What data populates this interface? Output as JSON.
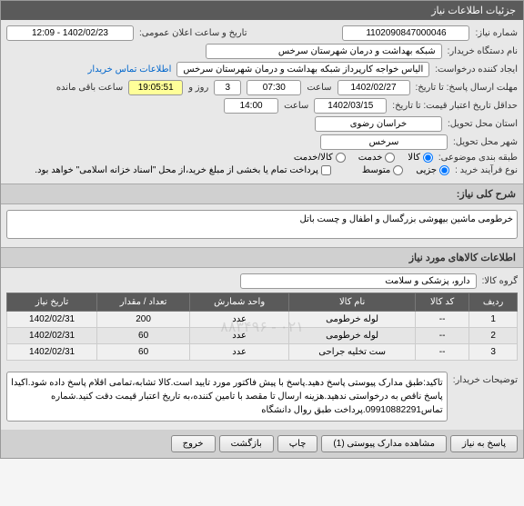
{
  "header": {
    "left": "جزئیات اطلاعات نیاز",
    "right": "×"
  },
  "fields": {
    "need_number_label": "شماره نیاز:",
    "need_number": "1102090847000046",
    "announce_label": "تاریخ و ساعت اعلان عمومی:",
    "announce_value": "1402/02/23 - 12:09",
    "buyer_label": "نام دستگاه خریدار:",
    "buyer_value": "شبکه بهداشت و درمان شهرستان سرخس",
    "creator_label": "ایجاد کننده درخواست:",
    "creator_value": "الیاس خواجه کارپرداز شبکه بهداشت و درمان شهرستان سرخس",
    "contact_link": "اطلاعات تماس خریدار",
    "deadline_label": "مهلت ارسال پاسخ: تا تاریخ:",
    "deadline_date": "1402/02/27",
    "time_label": "ساعت",
    "deadline_time": "07:30",
    "days_label": "روز و",
    "days_value": "3",
    "remaining_label": "ساعت باقی مانده",
    "remaining_time": "19:05:51",
    "validity_label": "حداقل تاریخ اعتبار قیمت: تا تاریخ:",
    "validity_date": "1402/03/15",
    "validity_time": "14:00",
    "province_label": "استان محل تحویل:",
    "province_value": "خراسان رضوی",
    "city_label": "شهر محل تحویل:",
    "city_value": "سرخس",
    "category_label": "طبقه بندی موضوعی:",
    "cat_goods": "کالا",
    "cat_service": "خدمت",
    "cat_both": "کالا/خدمت",
    "process_label": "نوع فرآیند خرید :",
    "proc_minor": "جزیی",
    "proc_medium": "متوسط",
    "payment_note": "پرداخت تمام یا بخشی از مبلغ خرید،از محل \"اسناد خزانه اسلامی\" خواهد بود."
  },
  "summary": {
    "title": "شرح کلی نیاز:",
    "text": "خرطومی ماشین بیهوشی بزرگسال و اطفال و چست باتل"
  },
  "items_section": {
    "title": "اطلاعات کالاهای مورد نیاز",
    "group_label": "گروه کالا:",
    "group_value": "دارو، پزشکی و سلامت"
  },
  "table": {
    "columns": [
      "ردیف",
      "کد کالا",
      "نام کالا",
      "واحد شمارش",
      "تعداد / مقدار",
      "تاریخ نیاز"
    ],
    "rows": [
      [
        "1",
        "--",
        "لوله خرطومی",
        "عدد",
        "200",
        "1402/02/31"
      ],
      [
        "2",
        "--",
        "لوله خرطومی",
        "عدد",
        "60",
        "1402/02/31"
      ],
      [
        "3",
        "--",
        "ست تخلیه جراحی",
        "عدد",
        "60",
        "1402/02/31"
      ]
    ],
    "watermark": "۰۲۱ - ۸۸۳۴۹۶"
  },
  "buyer_notes": {
    "label": "توضیحات خریدار:",
    "text": "تاکید:طبق مدارک پیوستی پاسخ دهید.پاسخ با پیش فاکتور مورد تایید است.کالا تشابه،تمامی اقلام پاسخ داده شود.اکیدا پاسخ ناقص به درخواستی ندهید.هزینه ارسال تا مقصد با تامین کننده،به تاریخ اعتبار قیمت دقت کنید.شماره تماس09910882291.پرداخت طبق روال دانشگاه"
  },
  "buttons": {
    "respond": "پاسخ به نیاز",
    "attachments": "مشاهده مدارک پیوستی (1)",
    "print": "چاپ",
    "back": "بازگشت",
    "close": "خروج"
  }
}
